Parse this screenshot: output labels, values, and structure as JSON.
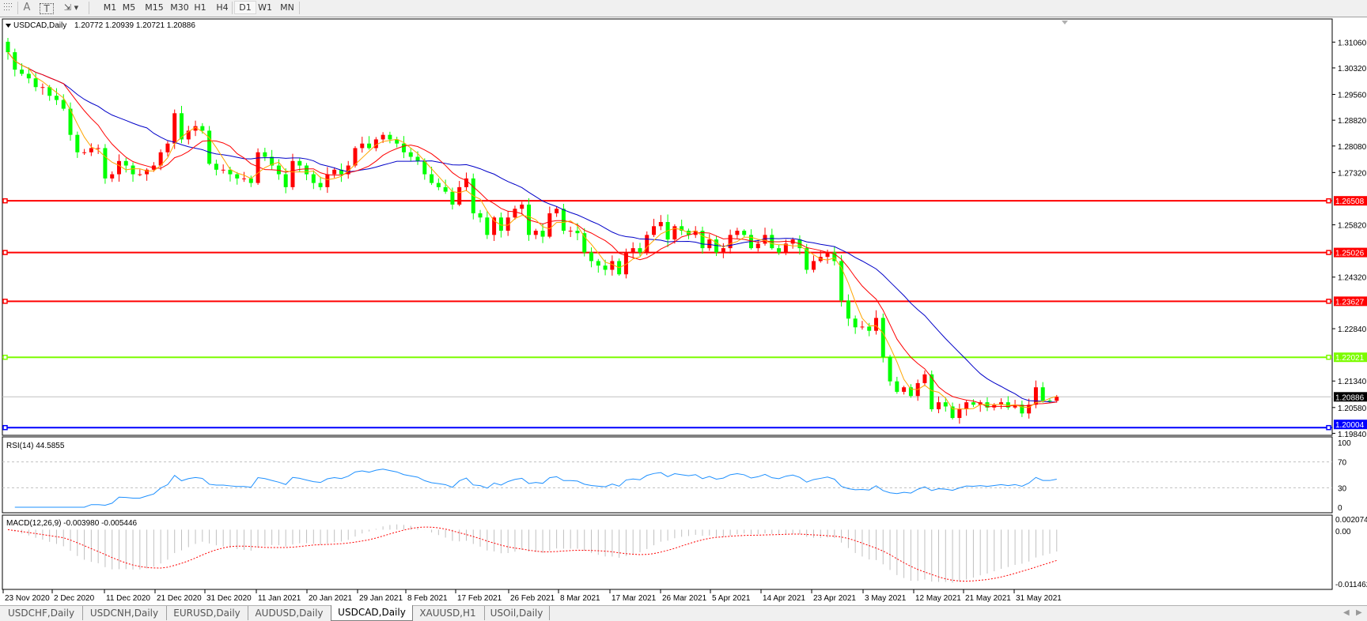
{
  "toolbar": {
    "tools": [
      {
        "icon": "grid-icon",
        "label": ""
      },
      {
        "icon": "text-icon",
        "label": "A"
      },
      {
        "icon": "text-label-icon",
        "label": "T"
      },
      {
        "icon": "arrows-icon",
        "label": ""
      }
    ],
    "timeframes": [
      "M1",
      "M5",
      "M15",
      "M30",
      "H1",
      "H4",
      "D1",
      "W1",
      "MN"
    ],
    "active_timeframe": "D1"
  },
  "chart_data": {
    "type": "candlestick",
    "symbol_label": "USDCAD,Daily",
    "ohlc_header": "1.20772 1.20939 1.20721 1.20886",
    "last_bar": {
      "open": 1.20772,
      "high": 1.20939,
      "low": 1.20721,
      "close": 1.20886
    },
    "closes": [
      1.3077,
      1.3027,
      1.3015,
      1.3002,
      1.2977,
      1.2977,
      1.2952,
      1.294,
      1.2915,
      1.284,
      1.279,
      1.279,
      1.2802,
      1.2802,
      1.2715,
      1.2727,
      1.2765,
      1.2752,
      1.2727,
      1.2727,
      1.274,
      1.2752,
      1.279,
      1.2815,
      1.2902,
      1.2827,
      1.2852,
      1.2865,
      1.2852,
      1.2757,
      1.274,
      1.274,
      1.2727,
      1.2715,
      1.2715,
      1.2702,
      1.279,
      1.2777,
      1.2752,
      1.2727,
      1.269,
      1.2765,
      1.2752,
      1.2727,
      1.2702,
      1.269,
      1.2727,
      1.274,
      1.2727,
      1.2752,
      1.2802,
      1.2815,
      1.2802,
      1.2827,
      1.284,
      1.2827,
      1.2815,
      1.279,
      1.2777,
      1.2765,
      1.2727,
      1.2702,
      1.269,
      1.2677,
      1.264,
      1.269,
      1.2715,
      1.2615,
      1.2603,
      1.2553,
      1.2603,
      1.2565,
      1.2603,
      1.2628,
      1.264,
      1.2553,
      1.2565,
      1.2548,
      1.2615,
      1.2628,
      1.2565,
      1.2565,
      1.2558,
      1.2503,
      1.2478,
      1.2465,
      1.2453,
      1.2478,
      1.244,
      1.2503,
      1.2515,
      1.2503,
      1.2553,
      1.2578,
      1.259,
      1.254,
      1.2578,
      1.2565,
      1.2553,
      1.2565,
      1.2515,
      1.254,
      1.2503,
      1.2515,
      1.2553,
      1.2565,
      1.2553,
      1.2515,
      1.2528,
      1.2553,
      1.2515,
      1.2503,
      1.2528,
      1.254,
      1.2515,
      1.2453,
      1.2478,
      1.249,
      1.2503,
      1.2478,
      1.2365,
      1.2313,
      1.2288,
      1.229,
      1.2278,
      1.2315,
      1.2203,
      1.2133,
      1.2103,
      1.2116,
      1.2091,
      1.2128,
      1.2153,
      1.2053,
      1.2073,
      1.2061,
      1.2028,
      1.2053,
      1.2073,
      1.2066,
      1.2073,
      1.2058,
      1.2066,
      1.2073,
      1.2058,
      1.2066,
      1.2041,
      1.2066,
      1.2116,
      1.2078,
      1.20772,
      1.20886
    ],
    "y_range": [
      1.1984,
      1.3106
    ],
    "y_ticks": [
      "1.31060",
      "1.30320",
      "1.29560",
      "1.28820",
      "1.28080",
      "1.27320",
      "1.25820",
      "1.24320",
      "1.22840",
      "1.21340",
      "1.20580",
      "1.19840"
    ],
    "horizontal_lines": [
      {
        "price": "1.26508",
        "color": "#FF0000"
      },
      {
        "price": "1.25026",
        "color": "#FF0000"
      },
      {
        "price": "1.23627",
        "color": "#FF0000"
      },
      {
        "price": "1.22021",
        "color": "#7CFC00"
      },
      {
        "price": "1.20004",
        "color": "#0000FF"
      }
    ],
    "bid_line": {
      "price": "1.20886",
      "color": "#C0C0C0"
    },
    "date_labels": [
      "23 Nov 2020",
      "2 Dec 2020",
      "11 Dec 2020",
      "21 Dec 2020",
      "31 Dec 2020",
      "11 Jan 2021",
      "20 Jan 2021",
      "29 Jan 2021",
      "8 Feb 2021",
      "17 Feb 2021",
      "26 Feb 2021",
      "8 Mar 2021",
      "17 Mar 2021",
      "26 Mar 2021",
      "5 Apr 2021",
      "14 Apr 2021",
      "23 Apr 2021",
      "3 May 2021",
      "12 May 2021",
      "21 May 2021",
      "31 May 2021"
    ],
    "colors": {
      "bull": "#FF0000",
      "bear": "#00FF00",
      "ma_slow": "#0000C8",
      "ma_mid": "#FF0000",
      "ma_fast": "#FFA500",
      "rsi": "#1E90FF",
      "macd_hist": "#C0C0C0",
      "macd_signal": "#FF0000"
    },
    "rsi": {
      "label": "RSI(14) 44.5855",
      "levels": [
        "100",
        "70",
        "30",
        "0"
      ]
    },
    "macd": {
      "label": "MACD(12,26,9) -0.003980 -0.005446",
      "ticks": [
        "0.002074",
        "0.00",
        "-0.011462"
      ],
      "range": [
        -0.011462,
        0.002074
      ]
    }
  },
  "tabs": [
    "USDCHF,Daily",
    "USDCNH,Daily",
    "EURUSD,Daily",
    "AUDUSD,Daily",
    "USDCAD,Daily",
    "XAUUSD,H1",
    "USOil,Daily"
  ],
  "active_tab": "USDCAD,Daily"
}
